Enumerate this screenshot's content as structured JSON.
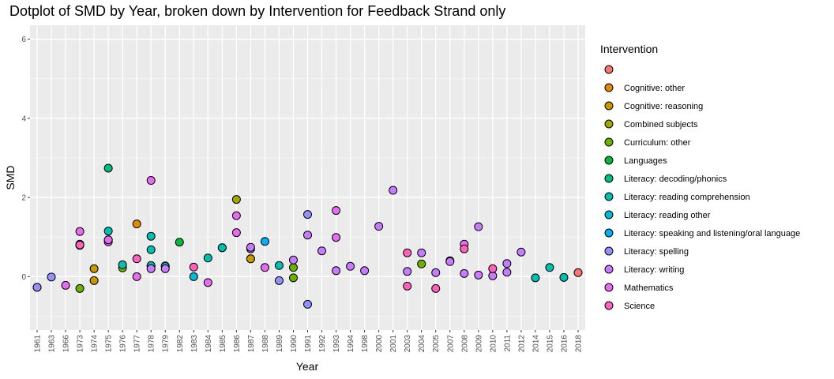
{
  "chart_data": {
    "type": "scatter",
    "title": "Dotplot of SMD by Year, broken down by Intervention for Feedback Strand only",
    "xlabel": "Year",
    "ylabel": "SMD",
    "ylim": [
      -1.35,
      6.35
    ],
    "yticks": [
      0,
      2,
      4,
      6
    ],
    "grid": true,
    "legend_position": "right",
    "categories": [
      "1961",
      "1963",
      "1966",
      "1973",
      "1974",
      "1975",
      "1976",
      "1977",
      "1978",
      "1979",
      "1982",
      "1983",
      "1984",
      "1985",
      "1986",
      "1987",
      "1988",
      "1989",
      "1990",
      "1991",
      "1992",
      "1993",
      "1994",
      "1998",
      "2000",
      "2001",
      "2003",
      "2004",
      "2005",
      "2007",
      "2008",
      "2009",
      "2010",
      "2011",
      "2012",
      "2014",
      "2015",
      "2016",
      "2018"
    ],
    "legend_title": "Intervention",
    "series": [
      {
        "name": "",
        "color": "#F8766D",
        "points": [
          [
            "2018",
            0.1
          ]
        ]
      },
      {
        "name": "Cognitive: other",
        "color": "#E58700",
        "points": [
          [
            "1977",
            1.33
          ]
        ]
      },
      {
        "name": "Cognitive: reasoning",
        "color": "#C99800",
        "points": [
          [
            "1974",
            0.2
          ],
          [
            "1974",
            -0.1
          ],
          [
            "1987",
            0.45
          ],
          [
            "1987",
            0.45
          ]
        ]
      },
      {
        "name": "Combined subjects",
        "color": "#A3A500",
        "points": [
          [
            "1986",
            1.95
          ]
        ]
      },
      {
        "name": "Curriculum: other",
        "color": "#6BB100",
        "points": [
          [
            "1973",
            -0.3
          ],
          [
            "1976",
            0.22
          ],
          [
            "1990",
            0.23
          ],
          [
            "1990",
            -0.03
          ],
          [
            "2004",
            0.32
          ]
        ]
      },
      {
        "name": "Languages",
        "color": "#00BA38",
        "points": [
          [
            "1982",
            0.87
          ]
        ]
      },
      {
        "name": "Literacy: decoding/phonics",
        "color": "#00BF7D",
        "points": [
          [
            "1975",
            2.74
          ]
        ]
      },
      {
        "name": "Literacy: reading comprehension",
        "color": "#00C0AF",
        "points": [
          [
            "1975",
            1.15
          ],
          [
            "1976",
            0.3
          ],
          [
            "1978",
            1.02
          ],
          [
            "1978",
            0.68
          ],
          [
            "1978",
            0.27
          ],
          [
            "1978",
            0.28
          ],
          [
            "1979",
            0.27
          ],
          [
            "1979",
            0.26
          ],
          [
            "1984",
            0.47
          ],
          [
            "1985",
            0.73
          ],
          [
            "1985",
            0.73
          ],
          [
            "1989",
            0.28
          ],
          [
            "2007",
            0.4
          ],
          [
            "2014",
            -0.03
          ],
          [
            "2015",
            0.23
          ],
          [
            "2016",
            -0.02
          ]
        ]
      },
      {
        "name": "Literacy: reading other",
        "color": "#00BCD8",
        "points": [
          [
            "1983",
            0.0
          ]
        ]
      },
      {
        "name": "Literacy: speaking and listening/oral language",
        "color": "#00B0F6",
        "points": [
          [
            "1988",
            0.89
          ]
        ]
      },
      {
        "name": "Literacy: spelling",
        "color": "#619CFF",
        "points": []
      },
      {
        "name": "Literacy: spelling",
        "color": "#9590FF",
        "points": [
          [
            "1961",
            -0.27
          ],
          [
            "1961",
            -0.27
          ],
          [
            "1963",
            -0.01
          ],
          [
            "1989",
            -0.1
          ],
          [
            "1991",
            1.57
          ],
          [
            "1991",
            -0.7
          ]
        ]
      },
      {
        "name": "Literacy: writing",
        "color": "#C77CFF",
        "points": [
          [
            "1978",
            0.2
          ],
          [
            "1979",
            0.2
          ],
          [
            "1987",
            0.7
          ],
          [
            "1987",
            0.74
          ],
          [
            "1990",
            0.42
          ],
          [
            "1991",
            1.05
          ],
          [
            "1992",
            0.65
          ],
          [
            "1993",
            0.15
          ],
          [
            "1994",
            0.26
          ],
          [
            "1998",
            0.15
          ],
          [
            "2000",
            1.27
          ],
          [
            "2001",
            2.18
          ],
          [
            "2003",
            0.13
          ],
          [
            "2004",
            0.6
          ],
          [
            "2005",
            0.1
          ],
          [
            "2007",
            0.38
          ],
          [
            "2008",
            0.08
          ],
          [
            "2009",
            1.26
          ],
          [
            "2009",
            0.04
          ],
          [
            "2010",
            0.02
          ],
          [
            "2011",
            0.11
          ],
          [
            "2011",
            0.33
          ],
          [
            "2012",
            0.62
          ]
        ]
      },
      {
        "name": "Mathematics",
        "color": "#E76BF3",
        "points": [
          [
            "1966",
            -0.22
          ],
          [
            "1973",
            0.79
          ],
          [
            "1973",
            1.14
          ],
          [
            "1973",
            0.82
          ],
          [
            "1975",
            0.93
          ],
          [
            "1975",
            0.88
          ],
          [
            "1975",
            0.93
          ],
          [
            "1977",
            0.0
          ],
          [
            "1978",
            2.43
          ],
          [
            "1984",
            -0.15
          ],
          [
            "1986",
            1.54
          ],
          [
            "1986",
            1.11
          ],
          [
            "1988",
            0.23
          ],
          [
            "1993",
            1.67
          ],
          [
            "1993",
            0.99
          ],
          [
            "2008",
            0.82
          ]
        ]
      },
      {
        "name": "Science",
        "color": "#FF62BC",
        "points": [
          [
            "1973",
            0.8
          ],
          [
            "1977",
            0.45
          ],
          [
            "1983",
            0.24
          ],
          [
            "2003",
            0.6
          ],
          [
            "2003",
            -0.24
          ],
          [
            "2005",
            -0.3
          ],
          [
            "2008",
            0.7
          ],
          [
            "2010",
            0.2
          ]
        ]
      }
    ]
  }
}
